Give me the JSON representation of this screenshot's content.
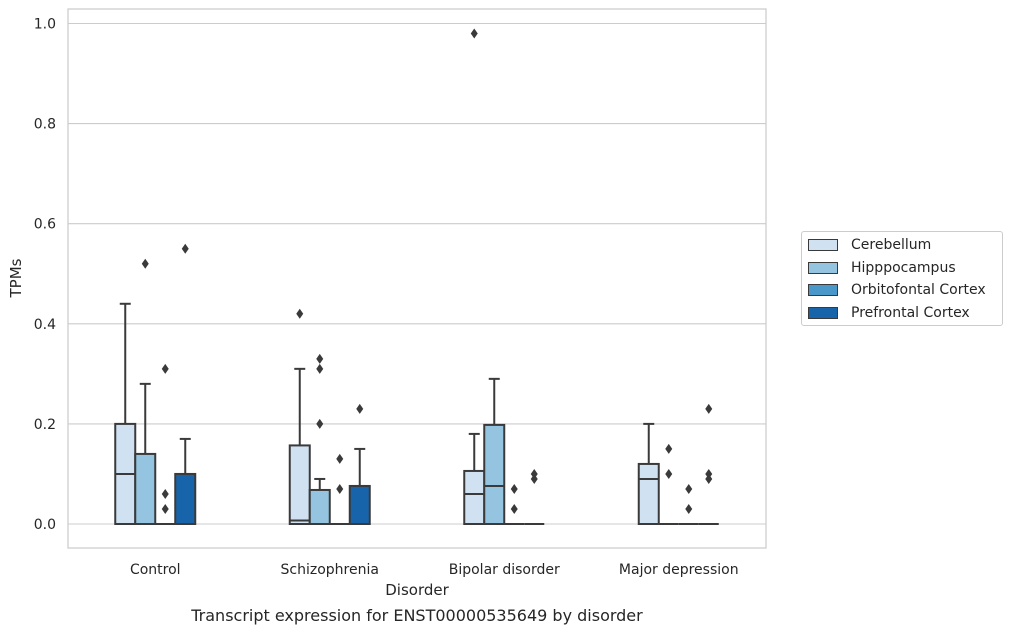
{
  "chart_data": {
    "type": "box",
    "xlabel": "Disorder",
    "ylabel": "TPMs",
    "ylim": [
      -0.045,
      1.03
    ],
    "yticks": [
      "0.0",
      "0.2",
      "0.4",
      "0.6",
      "0.8",
      "1.0"
    ],
    "ytick_values": [
      0.0,
      0.2,
      0.4,
      0.6,
      0.8,
      1.0
    ],
    "grid": true,
    "legend_position": "right",
    "categories": [
      "Control",
      "Schizophrenia",
      "Bipolar disorder",
      "Major depression"
    ],
    "series": [
      {
        "name": "Cerebellum",
        "color": "#d0e1f2",
        "boxes": [
          {
            "q1": 0.0,
            "median": 0.1,
            "q3": 0.2,
            "whisker_low": 0.0,
            "whisker_high": 0.44,
            "outliers": []
          },
          {
            "q1": 0.0,
            "median": 0.007,
            "q3": 0.157,
            "whisker_low": 0.0,
            "whisker_high": 0.31,
            "outliers": [
              0.42
            ]
          },
          {
            "q1": 0.0,
            "median": 0.06,
            "q3": 0.106,
            "whisker_low": 0.0,
            "whisker_high": 0.18,
            "outliers": [
              0.98
            ]
          },
          {
            "q1": 0.0,
            "median": 0.09,
            "q3": 0.12,
            "whisker_low": 0.0,
            "whisker_high": 0.2,
            "outliers": []
          }
        ]
      },
      {
        "name": "Hipppocampus",
        "color": "#94c4df",
        "boxes": [
          {
            "q1": 0.0,
            "median": 0.0,
            "q3": 0.14,
            "whisker_low": 0.0,
            "whisker_high": 0.28,
            "outliers": [
              0.52
            ]
          },
          {
            "q1": 0.0,
            "median": 0.0,
            "q3": 0.068,
            "whisker_low": 0.0,
            "whisker_high": 0.09,
            "outliers": [
              0.2,
              0.31,
              0.33
            ]
          },
          {
            "q1": 0.0,
            "median": 0.076,
            "q3": 0.198,
            "whisker_low": 0.0,
            "whisker_high": 0.29,
            "outliers": []
          },
          {
            "q1": 0.0,
            "median": 0.0,
            "q3": 0.0,
            "whisker_low": 0.0,
            "whisker_high": 0.0,
            "outliers": [
              0.1,
              0.15
            ]
          }
        ]
      },
      {
        "name": "Orbitofontal Cortex",
        "color": "#4a98c9",
        "boxes": [
          {
            "q1": 0.0,
            "median": 0.0,
            "q3": 0.0,
            "whisker_low": 0.0,
            "whisker_high": 0.0,
            "outliers": [
              0.03,
              0.06,
              0.31
            ]
          },
          {
            "q1": 0.0,
            "median": 0.0,
            "q3": 0.0,
            "whisker_low": 0.0,
            "whisker_high": 0.0,
            "outliers": [
              0.07,
              0.13
            ]
          },
          {
            "q1": 0.0,
            "median": 0.0,
            "q3": 0.0,
            "whisker_low": 0.0,
            "whisker_high": 0.0,
            "outliers": [
              0.03,
              0.07
            ]
          },
          {
            "q1": 0.0,
            "median": 0.0,
            "q3": 0.0,
            "whisker_low": 0.0,
            "whisker_high": 0.0,
            "outliers": [
              0.03,
              0.07
            ]
          }
        ]
      },
      {
        "name": "Prefrontal Cortex",
        "color": "#1764ab",
        "boxes": [
          {
            "q1": 0.0,
            "median": 0.0,
            "q3": 0.1,
            "whisker_low": 0.0,
            "whisker_high": 0.17,
            "outliers": [
              0.55
            ]
          },
          {
            "q1": 0.0,
            "median": 0.0,
            "q3": 0.076,
            "whisker_low": 0.0,
            "whisker_high": 0.15,
            "outliers": [
              0.23
            ]
          },
          {
            "q1": 0.0,
            "median": 0.0,
            "q3": 0.0,
            "whisker_low": 0.0,
            "whisker_high": 0.0,
            "outliers": [
              0.09,
              0.1
            ]
          },
          {
            "q1": 0.0,
            "median": 0.0,
            "q3": 0.0,
            "whisker_low": 0.0,
            "whisker_high": 0.0,
            "outliers": [
              0.09,
              0.1,
              0.23
            ]
          }
        ]
      }
    ],
    "caption": "Transcript expression for ENST00000535649 by disorder"
  }
}
